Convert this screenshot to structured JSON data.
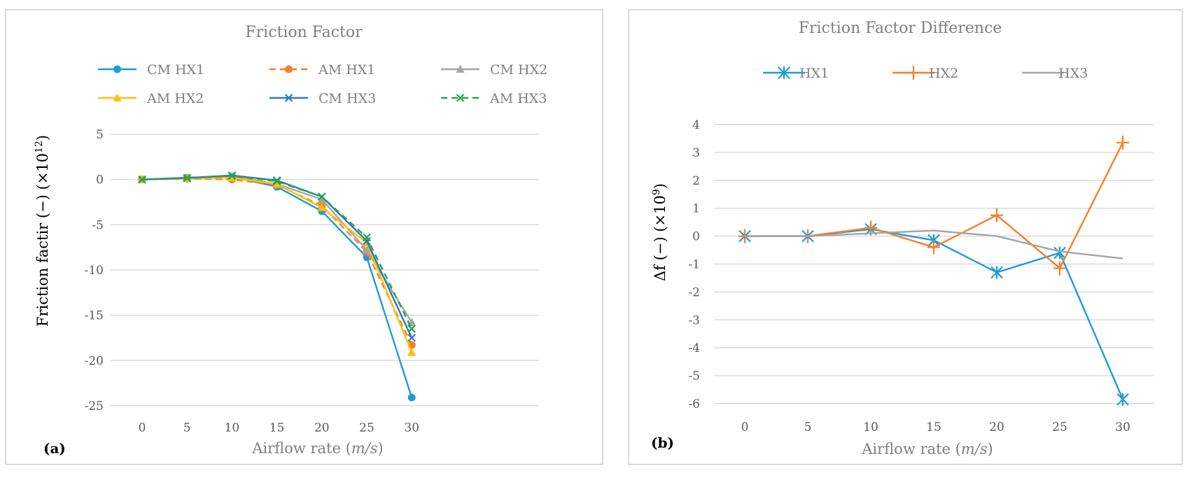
{
  "chart_data": [
    {
      "panel_label": "(a)",
      "type": "line",
      "title": "Friction Factor",
      "xlabel_prefix": "Airflow rate (",
      "xlabel_unit": "m/s",
      "xlabel_suffix": ")",
      "ylabel_text": "Friction factir (−) (×10",
      "ylabel_exp": "12",
      "ylabel_close": ")",
      "x": [
        0,
        5,
        10,
        15,
        20,
        25,
        30
      ],
      "ylim": [
        -25,
        5
      ],
      "yticks": [
        5,
        0,
        -5,
        -10,
        -15,
        -20,
        -25
      ],
      "grid": true,
      "legend_position": "top",
      "series": [
        {
          "name": "CM HX1",
          "color": "#1f9bd7",
          "dash": false,
          "marker": "circle",
          "values": [
            0,
            0.2,
            0.3,
            -0.8,
            -3.5,
            -8.6,
            -24.1
          ]
        },
        {
          "name": "AM HX1",
          "color": "#f57f2a",
          "dash": true,
          "marker": "circle",
          "values": [
            0,
            0.1,
            0,
            -0.6,
            -2.9,
            -8.0,
            -18.3
          ]
        },
        {
          "name": "CM HX2",
          "color": "#a5a5a5",
          "dash": false,
          "marker": "triangle",
          "values": [
            0,
            0.15,
            0.35,
            -0.5,
            -2.2,
            -7.8,
            -15.8
          ]
        },
        {
          "name": "AM HX2",
          "color": "#ffc000",
          "dash": false,
          "marker": "triangle",
          "values": [
            0,
            0.12,
            0.2,
            -0.5,
            -3.1,
            -7.0,
            -19.1
          ]
        },
        {
          "name": "CM HX3",
          "color": "#2e75c2",
          "dash": false,
          "marker": "x",
          "values": [
            0,
            0.18,
            0.45,
            -0.1,
            -1.9,
            -6.8,
            -17.5
          ]
        },
        {
          "name": "AM HX3",
          "color": "#22a845",
          "dash": true,
          "marker": "x",
          "values": [
            0,
            0.15,
            0.4,
            -0.2,
            -1.9,
            -6.4,
            -16.5
          ]
        }
      ]
    },
    {
      "panel_label": "(b)",
      "type": "line",
      "title": "Friction Factor Difference",
      "xlabel_prefix": "Airflow rate (",
      "xlabel_unit": "m/s",
      "xlabel_suffix": ")",
      "ylabel_text": "Δf (−) (×10",
      "ylabel_exp": "9",
      "ylabel_close": ")",
      "x": [
        0,
        5,
        10,
        15,
        20,
        25,
        30
      ],
      "ylim": [
        -6,
        4
      ],
      "yticks": [
        4,
        3,
        2,
        1,
        0,
        -1,
        -2,
        -3,
        -4,
        -5,
        -6
      ],
      "grid": true,
      "legend_position": "top",
      "series": [
        {
          "name": "HX1",
          "color": "#1f9bd7",
          "dash": false,
          "marker": "asterisk",
          "values": [
            0,
            0,
            0.25,
            -0.15,
            -1.3,
            -0.6,
            -5.85
          ]
        },
        {
          "name": "HX2",
          "color": "#f57f2a",
          "dash": false,
          "marker": "plus",
          "values": [
            0,
            0,
            0.3,
            -0.4,
            0.75,
            -1.15,
            3.35
          ]
        },
        {
          "name": "HX3",
          "color": "#a5a5a5",
          "dash": false,
          "marker": "none",
          "values": [
            0,
            0,
            0.1,
            0.2,
            0,
            -0.55,
            -0.8
          ]
        }
      ]
    }
  ]
}
